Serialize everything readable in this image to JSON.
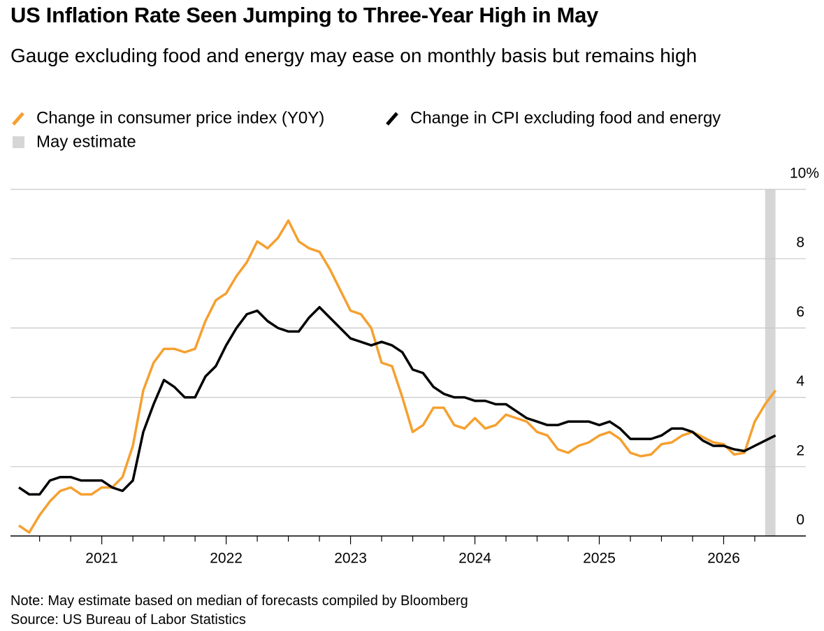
{
  "chart_data": {
    "type": "line",
    "title": "US Inflation Rate Seen Jumping to Three-Year High in May",
    "subtitle": "Gauge excluding food and energy may ease on monthly basis but remains high",
    "note": "Note: May estimate based on median of forecasts compiled by Bloomberg",
    "source": "Source: US Bureau of Labor Statistics",
    "x": [
      "2020-04",
      "2020-05",
      "2020-06",
      "2020-07",
      "2020-08",
      "2020-09",
      "2020-10",
      "2020-11",
      "2020-12",
      "2021-01",
      "2021-02",
      "2021-03",
      "2021-04",
      "2021-05",
      "2021-06",
      "2021-07",
      "2021-08",
      "2021-09",
      "2021-10",
      "2021-11",
      "2021-12",
      "2022-01",
      "2022-02",
      "2022-03",
      "2022-04",
      "2022-05",
      "2022-06",
      "2022-07",
      "2022-08",
      "2022-09",
      "2022-10",
      "2022-11",
      "2022-12",
      "2023-01",
      "2023-02",
      "2023-03",
      "2023-04",
      "2023-05",
      "2023-06",
      "2023-07",
      "2023-08",
      "2023-09",
      "2023-10",
      "2023-11",
      "2023-12",
      "2024-01",
      "2024-02",
      "2024-03",
      "2024-04",
      "2024-05",
      "2024-06",
      "2024-07",
      "2024-08",
      "2024-09",
      "2024-10",
      "2024-11",
      "2024-12",
      "2025-01",
      "2025-02",
      "2025-03",
      "2025-04",
      "2025-05",
      "2025-06",
      "2025-07",
      "2025-08",
      "2025-09",
      "2025-10",
      "2025-11",
      "2025-12",
      "2026-01",
      "2026-02",
      "2026-03",
      "2026-04",
      "2026-05"
    ],
    "series": [
      {
        "name": "Change in consumer price index (Y0Y)",
        "color": "#f5a030",
        "values": [
          0.3,
          0.1,
          0.6,
          1.0,
          1.3,
          1.4,
          1.2,
          1.2,
          1.4,
          1.4,
          1.7,
          2.6,
          4.2,
          5.0,
          5.4,
          5.4,
          5.3,
          5.4,
          6.2,
          6.8,
          7.0,
          7.5,
          7.9,
          8.5,
          8.3,
          8.6,
          9.1,
          8.5,
          8.3,
          8.2,
          7.7,
          7.1,
          6.5,
          6.4,
          6.0,
          5.0,
          4.9,
          4.0,
          3.0,
          3.2,
          3.7,
          3.7,
          3.2,
          3.1,
          3.4,
          3.1,
          3.2,
          3.5,
          3.4,
          3.3,
          3.0,
          2.9,
          2.5,
          2.4,
          2.6,
          2.7,
          2.9,
          3.0,
          2.8,
          2.4,
          2.3,
          2.35,
          2.65,
          2.7,
          2.9,
          3.0,
          2.85,
          2.7,
          2.65,
          2.35,
          2.4,
          3.3,
          3.8,
          4.2
        ]
      },
      {
        "name": "Change in CPI excluding food and energy",
        "color": "#000000",
        "values": [
          1.4,
          1.2,
          1.2,
          1.6,
          1.7,
          1.7,
          1.6,
          1.6,
          1.6,
          1.4,
          1.3,
          1.6,
          3.0,
          3.8,
          4.5,
          4.3,
          4.0,
          4.0,
          4.6,
          4.9,
          5.5,
          6.0,
          6.4,
          6.5,
          6.2,
          6.0,
          5.9,
          5.9,
          6.3,
          6.6,
          6.3,
          6.0,
          5.7,
          5.6,
          5.5,
          5.6,
          5.5,
          5.3,
          4.8,
          4.7,
          4.3,
          4.1,
          4.0,
          4.0,
          3.9,
          3.9,
          3.8,
          3.8,
          3.6,
          3.4,
          3.3,
          3.2,
          3.2,
          3.3,
          3.3,
          3.3,
          3.2,
          3.3,
          3.1,
          2.8,
          2.8,
          2.8,
          2.9,
          3.1,
          3.1,
          3.0,
          2.75,
          2.6,
          2.6,
          2.5,
          2.45,
          2.6,
          2.75,
          2.9
        ]
      }
    ],
    "highlight": {
      "name": "May estimate",
      "x": "2026-05",
      "color": "#d6d6d6"
    },
    "xticks": [
      "2021",
      "2022",
      "2023",
      "2024",
      "2025",
      "2026"
    ],
    "ylim": [
      0,
      10
    ],
    "yticks": [
      0,
      2,
      4,
      6,
      8,
      {
        "value": 10,
        "label": "10%"
      }
    ],
    "grid": true
  }
}
